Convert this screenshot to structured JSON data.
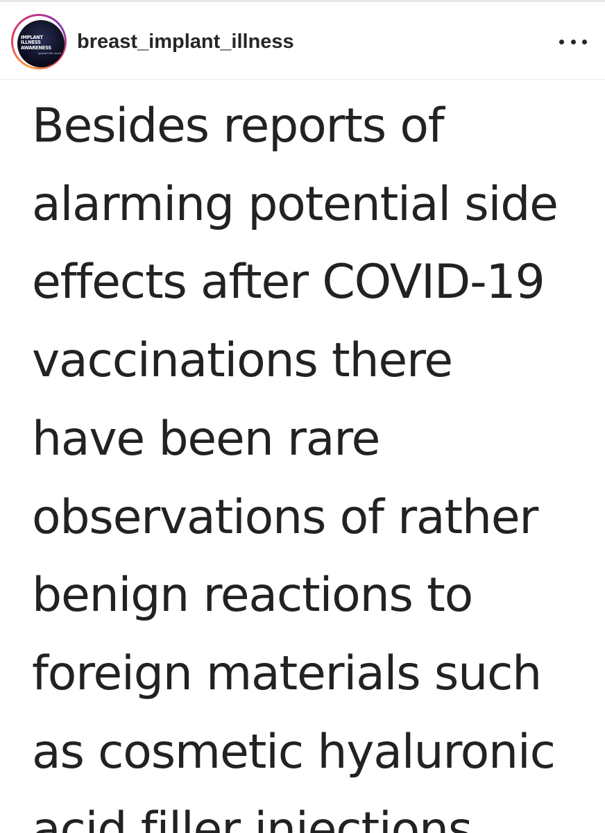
{
  "post": {
    "username": "breast_implant_illness",
    "avatar": {
      "logo_lines": [
        "IMPLANT",
        "ILLNESS",
        "AWARENESS"
      ],
      "logo_tagline": "spread the word",
      "background_color": "#0d0f22",
      "ring_colors": [
        "#f9a03f",
        "#e4405f",
        "#c13584",
        "#833ab4"
      ]
    },
    "more_icon": "more-horizontal-icon",
    "text_lines": [
      "Besides reports of",
      "alarming potential side",
      "effects after COVID-19",
      "vaccinations there",
      "have been rare",
      "observations of rather",
      "benign reactions to",
      "foreign materials such",
      "as cosmetic hyaluronic",
      "acid filler injections"
    ]
  }
}
